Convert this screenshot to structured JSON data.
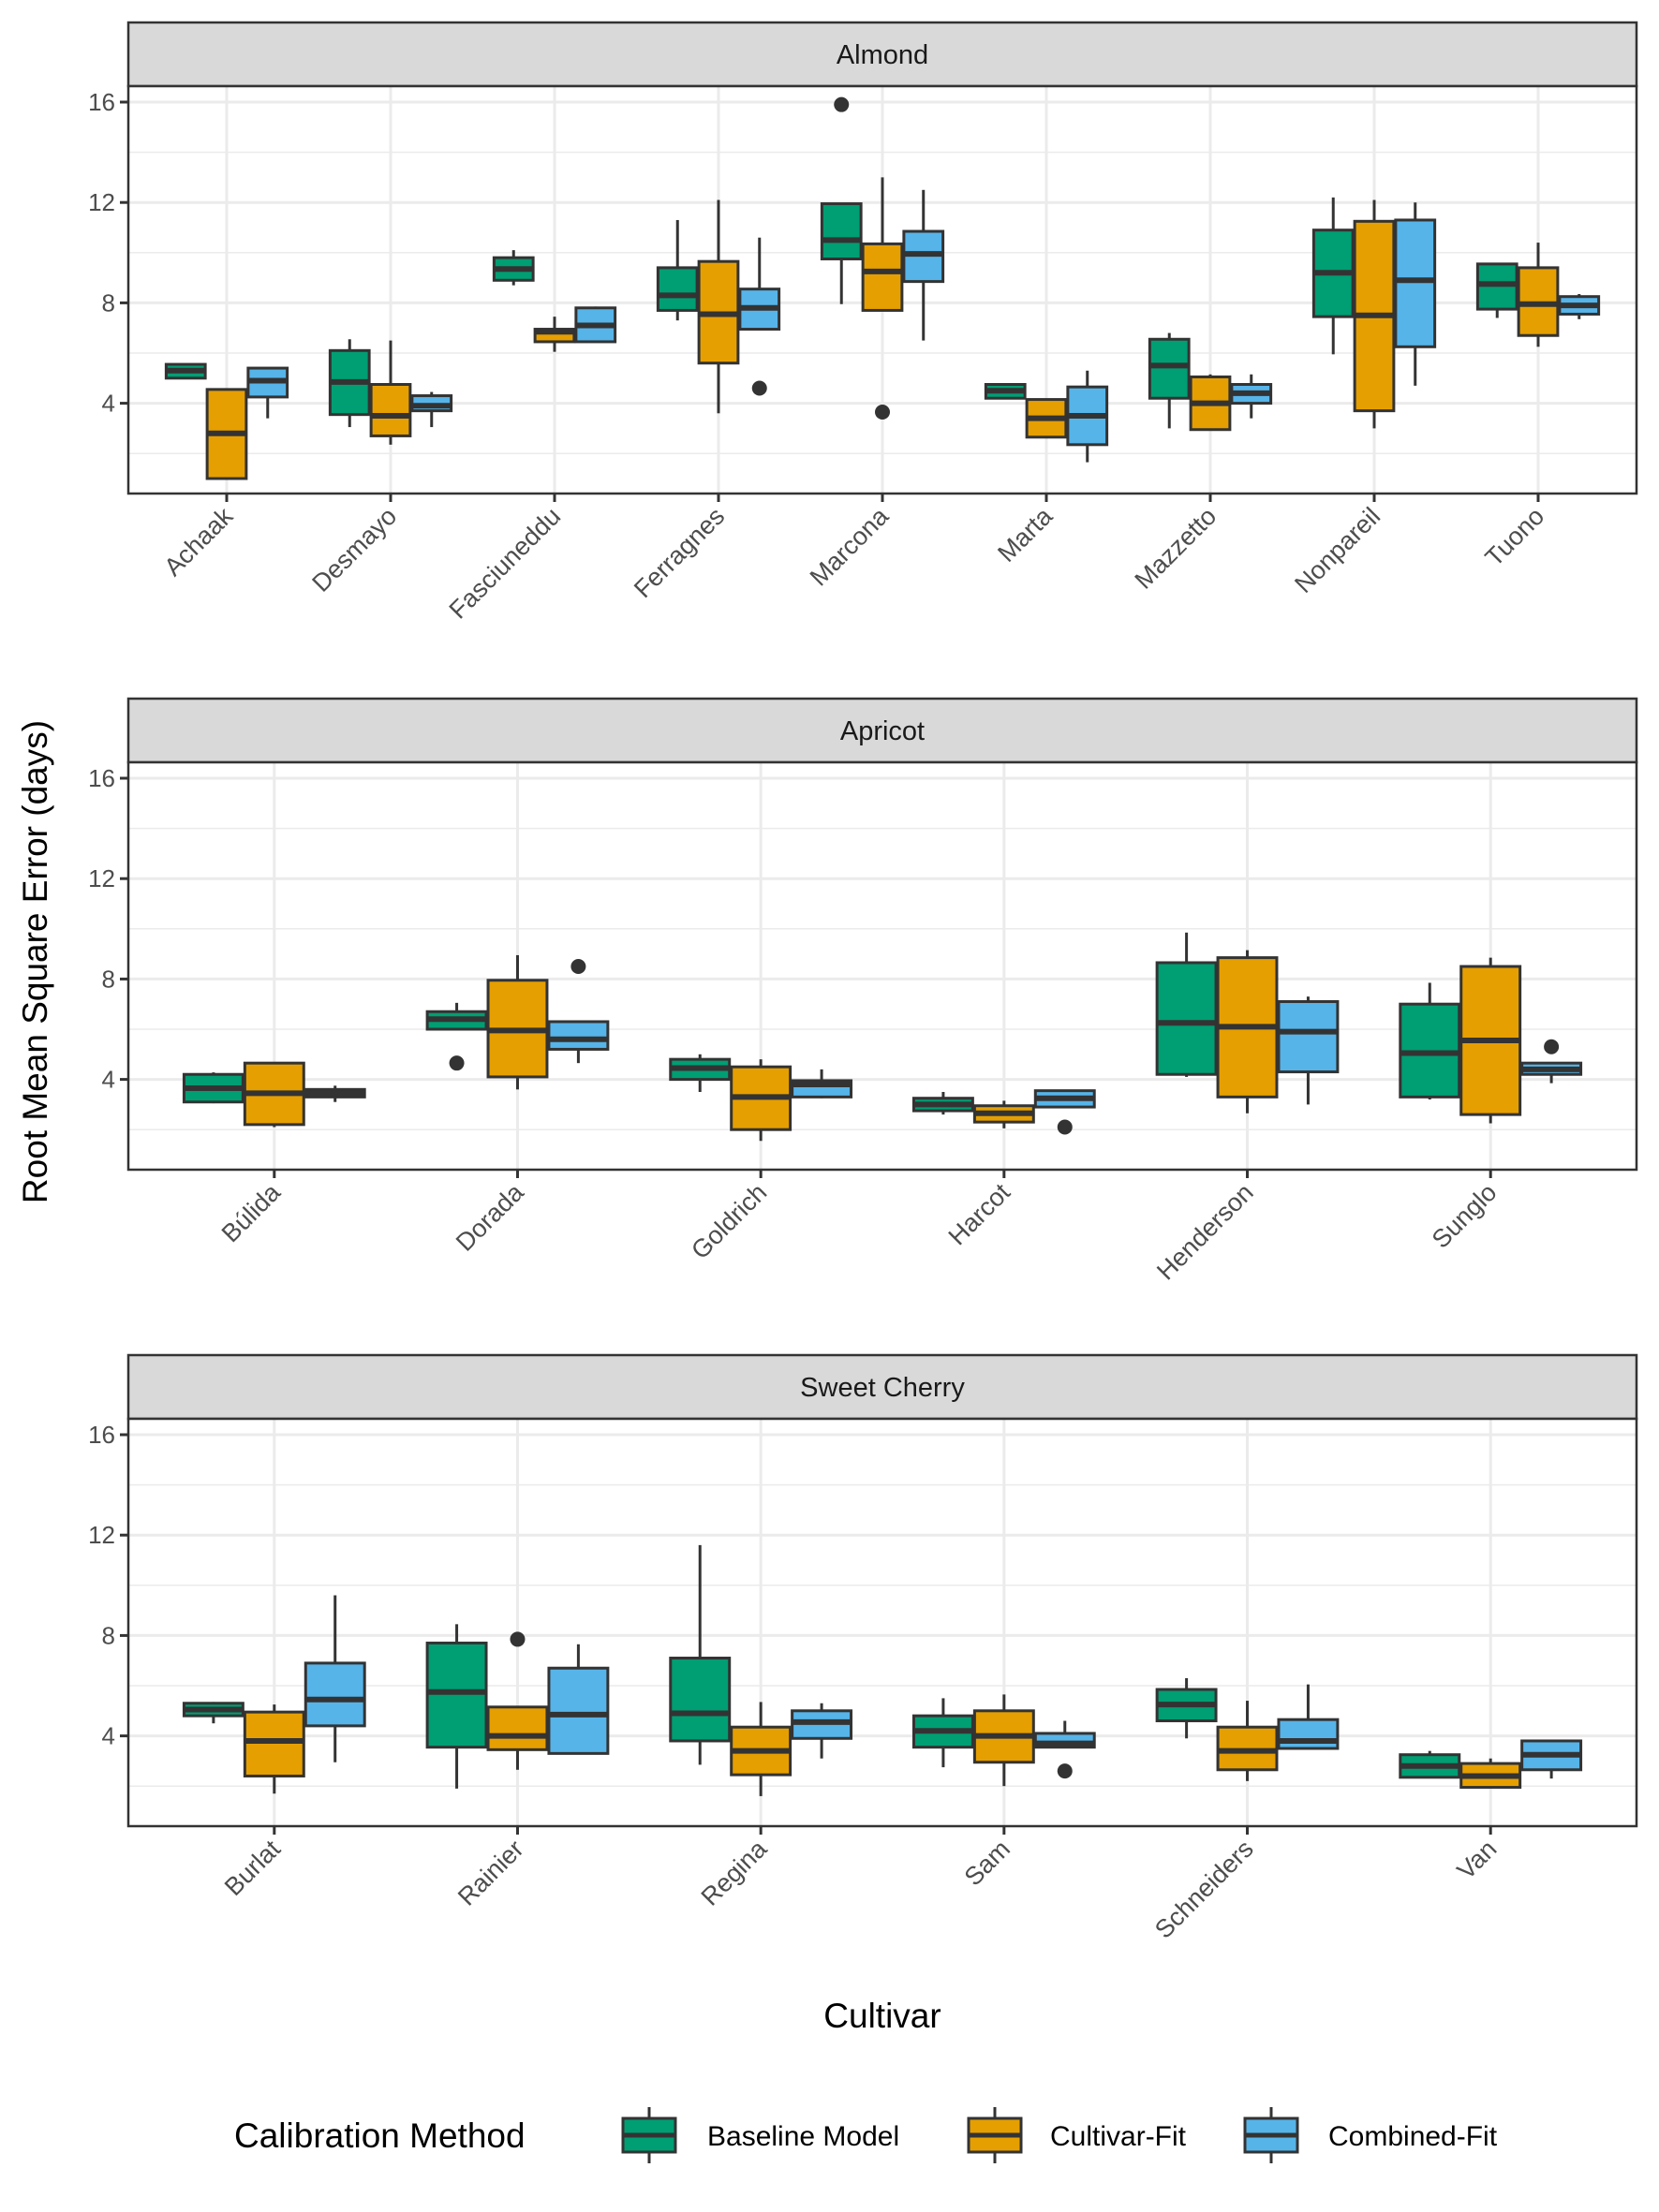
{
  "chart_data": {
    "type": "boxplot",
    "title": "",
    "xlabel": "Cultivar",
    "ylabel": "Root Mean Square Error (days)",
    "ylim": [
      0.38,
      17.0
    ],
    "yticks": [
      4,
      8,
      12,
      16
    ],
    "grid": true,
    "legend": {
      "title": "Calibration Method",
      "position": "bottom",
      "entries": [
        {
          "name": "Baseline Model",
          "color": "#009E73"
        },
        {
          "name": "Cultivar-Fit",
          "color": "#E69F00"
        },
        {
          "name": "Combined-Fit",
          "color": "#56B4E9"
        }
      ]
    },
    "panels": [
      {
        "strip": "Almond",
        "categories": [
          "Achaak",
          "Desmayo",
          "Fasciuneddu",
          "Ferragnes",
          "Marcona",
          "Marta",
          "Mazzetto",
          "Nonpareil",
          "Tuono"
        ],
        "series": [
          {
            "name": "Baseline Model",
            "boxes": [
              {
                "min": 5.0,
                "q1": 5.0,
                "median": 5.3,
                "q3": 5.55,
                "max": 5.55,
                "outliers": []
              },
              {
                "min": 3.05,
                "q1": 3.55,
                "median": 4.85,
                "q3": 6.1,
                "max": 6.55,
                "outliers": []
              },
              {
                "min": 8.7,
                "q1": 8.9,
                "median": 9.35,
                "q3": 9.8,
                "max": 10.1,
                "outliers": []
              },
              {
                "min": 7.3,
                "q1": 7.7,
                "median": 8.3,
                "q3": 9.4,
                "max": 11.3,
                "outliers": []
              },
              {
                "min": 7.95,
                "q1": 9.75,
                "median": 10.5,
                "q3": 11.95,
                "max": 11.95,
                "outliers": [
                  15.9
                ]
              },
              {
                "min": 4.2,
                "q1": 4.2,
                "median": 4.5,
                "q3": 4.75,
                "max": 4.75,
                "outliers": []
              },
              {
                "min": 3.0,
                "q1": 4.2,
                "median": 5.5,
                "q3": 6.55,
                "max": 6.8,
                "outliers": []
              },
              {
                "min": 5.95,
                "q1": 7.45,
                "median": 9.2,
                "q3": 10.9,
                "max": 12.2,
                "outliers": []
              },
              {
                "min": 7.4,
                "q1": 7.75,
                "median": 8.75,
                "q3": 9.55,
                "max": 9.55,
                "outliers": []
              }
            ]
          },
          {
            "name": "Cultivar-Fit",
            "boxes": [
              {
                "min": 1.0,
                "q1": 1.0,
                "median": 2.8,
                "q3": 4.55,
                "max": 4.55,
                "outliers": []
              },
              {
                "min": 2.35,
                "q1": 2.7,
                "median": 3.5,
                "q3": 4.75,
                "max": 6.5,
                "outliers": []
              },
              {
                "min": 6.05,
                "q1": 6.45,
                "median": 6.85,
                "q3": 6.95,
                "max": 7.45,
                "outliers": []
              },
              {
                "min": 3.6,
                "q1": 5.6,
                "median": 7.55,
                "q3": 9.65,
                "max": 12.1,
                "outliers": []
              },
              {
                "min": 7.7,
                "q1": 7.7,
                "median": 9.25,
                "q3": 10.35,
                "max": 13.0,
                "outliers": [
                  3.65
                ]
              },
              {
                "min": 2.65,
                "q1": 2.65,
                "median": 3.4,
                "q3": 4.15,
                "max": 4.15,
                "outliers": []
              },
              {
                "min": 2.95,
                "q1": 2.95,
                "median": 4.0,
                "q3": 5.05,
                "max": 5.15,
                "outliers": []
              },
              {
                "min": 3.0,
                "q1": 3.7,
                "median": 7.5,
                "q3": 11.25,
                "max": 12.1,
                "outliers": []
              },
              {
                "min": 6.25,
                "q1": 6.7,
                "median": 7.95,
                "q3": 9.4,
                "max": 10.4,
                "outliers": []
              }
            ]
          },
          {
            "name": "Combined-Fit",
            "boxes": [
              {
                "min": 3.4,
                "q1": 4.25,
                "median": 4.9,
                "q3": 5.4,
                "max": 5.4,
                "outliers": []
              },
              {
                "min": 3.05,
                "q1": 3.7,
                "median": 3.9,
                "q3": 4.3,
                "max": 4.45,
                "outliers": []
              },
              {
                "min": 6.45,
                "q1": 6.45,
                "median": 7.1,
                "q3": 7.8,
                "max": 7.85,
                "outliers": []
              },
              {
                "min": 6.95,
                "q1": 6.95,
                "median": 7.8,
                "q3": 8.55,
                "max": 10.6,
                "outliers": [
                  4.6
                ]
              },
              {
                "min": 6.5,
                "q1": 8.85,
                "median": 9.95,
                "q3": 10.85,
                "max": 12.5,
                "outliers": []
              },
              {
                "min": 1.65,
                "q1": 2.35,
                "median": 3.5,
                "q3": 4.65,
                "max": 5.3,
                "outliers": []
              },
              {
                "min": 3.4,
                "q1": 4.0,
                "median": 4.4,
                "q3": 4.75,
                "max": 5.15,
                "outliers": []
              },
              {
                "min": 4.7,
                "q1": 6.25,
                "median": 8.9,
                "q3": 11.3,
                "max": 12.0,
                "outliers": []
              },
              {
                "min": 7.35,
                "q1": 7.55,
                "median": 7.9,
                "q3": 8.25,
                "max": 8.35,
                "outliers": []
              }
            ]
          }
        ]
      },
      {
        "strip": "Apricot",
        "categories": [
          "Búlida",
          "Dorada",
          "Goldrich",
          "Harcot",
          "Henderson",
          "Sunglo"
        ],
        "series": [
          {
            "name": "Baseline Model",
            "boxes": [
              {
                "min": 3.05,
                "q1": 3.1,
                "median": 3.65,
                "q3": 4.2,
                "max": 4.28,
                "outliers": []
              },
              {
                "min": 6.0,
                "q1": 6.0,
                "median": 6.4,
                "q3": 6.7,
                "max": 7.05,
                "outliers": [
                  4.65
                ]
              },
              {
                "min": 3.5,
                "q1": 4.0,
                "median": 4.45,
                "q3": 4.8,
                "max": 5.0,
                "outliers": []
              },
              {
                "min": 2.6,
                "q1": 2.75,
                "median": 3.0,
                "q3": 3.25,
                "max": 3.5,
                "outliers": []
              },
              {
                "min": 4.1,
                "q1": 4.2,
                "median": 6.25,
                "q3": 8.65,
                "max": 9.85,
                "outliers": []
              },
              {
                "min": 3.2,
                "q1": 3.3,
                "median": 5.05,
                "q3": 7.0,
                "max": 7.85,
                "outliers": []
              }
            ]
          },
          {
            "name": "Cultivar-Fit",
            "boxes": [
              {
                "min": 2.1,
                "q1": 2.2,
                "median": 3.45,
                "q3": 4.65,
                "max": 4.65,
                "outliers": []
              },
              {
                "min": 3.6,
                "q1": 4.1,
                "median": 5.95,
                "q3": 7.95,
                "max": 8.95,
                "outliers": []
              },
              {
                "min": 1.55,
                "q1": 2.0,
                "median": 3.3,
                "q3": 4.5,
                "max": 4.8,
                "outliers": []
              },
              {
                "min": 2.05,
                "q1": 2.3,
                "median": 2.65,
                "q3": 2.95,
                "max": 3.15,
                "outliers": []
              },
              {
                "min": 2.65,
                "q1": 3.3,
                "median": 6.1,
                "q3": 8.85,
                "max": 9.15,
                "outliers": []
              },
              {
                "min": 2.25,
                "q1": 2.6,
                "median": 5.55,
                "q3": 8.5,
                "max": 8.85,
                "outliers": []
              }
            ]
          },
          {
            "name": "Combined-Fit",
            "boxes": [
              {
                "min": 3.1,
                "q1": 3.3,
                "median": 3.45,
                "q3": 3.6,
                "max": 3.75,
                "outliers": []
              },
              {
                "min": 4.65,
                "q1": 5.2,
                "median": 5.6,
                "q3": 6.3,
                "max": 6.3,
                "outliers": [
                  8.5
                ]
              },
              {
                "min": 3.25,
                "q1": 3.3,
                "median": 3.8,
                "q3": 3.95,
                "max": 4.4,
                "outliers": []
              },
              {
                "min": 2.9,
                "q1": 2.9,
                "median": 3.25,
                "q3": 3.55,
                "max": 3.55,
                "outliers": [
                  2.1
                ]
              },
              {
                "min": 3.0,
                "q1": 4.3,
                "median": 5.9,
                "q3": 7.1,
                "max": 7.3,
                "outliers": []
              },
              {
                "min": 3.85,
                "q1": 4.2,
                "median": 4.4,
                "q3": 4.65,
                "max": 4.65,
                "outliers": [
                  5.3
                ]
              }
            ]
          }
        ]
      },
      {
        "strip": "Sweet Cherry",
        "categories": [
          "Burlat",
          "Rainier",
          "Regina",
          "Sam",
          "Schneiders",
          "Van"
        ],
        "series": [
          {
            "name": "Baseline Model",
            "boxes": [
              {
                "min": 4.5,
                "q1": 4.8,
                "median": 5.05,
                "q3": 5.3,
                "max": 5.35,
                "outliers": []
              },
              {
                "min": 1.9,
                "q1": 3.55,
                "median": 5.75,
                "q3": 7.7,
                "max": 8.45,
                "outliers": []
              },
              {
                "min": 2.85,
                "q1": 3.8,
                "median": 4.9,
                "q3": 7.1,
                "max": 11.6,
                "outliers": []
              },
              {
                "min": 2.75,
                "q1": 3.55,
                "median": 4.2,
                "q3": 4.8,
                "max": 5.5,
                "outliers": []
              },
              {
                "min": 3.9,
                "q1": 4.6,
                "median": 5.25,
                "q3": 5.85,
                "max": 6.3,
                "outliers": []
              },
              {
                "min": 2.35,
                "q1": 2.35,
                "median": 2.8,
                "q3": 3.25,
                "max": 3.4,
                "outliers": []
              }
            ]
          },
          {
            "name": "Cultivar-Fit",
            "boxes": [
              {
                "min": 1.7,
                "q1": 2.4,
                "median": 3.8,
                "q3": 4.95,
                "max": 5.25,
                "outliers": []
              },
              {
                "min": 2.65,
                "q1": 3.45,
                "median": 4.0,
                "q3": 5.15,
                "max": 5.15,
                "outliers": [
                  7.85
                ]
              },
              {
                "min": 1.6,
                "q1": 2.45,
                "median": 3.4,
                "q3": 4.35,
                "max": 5.35,
                "outliers": []
              },
              {
                "min": 2.0,
                "q1": 2.95,
                "median": 4.0,
                "q3": 5.0,
                "max": 5.65,
                "outliers": []
              },
              {
                "min": 2.2,
                "q1": 2.65,
                "median": 3.4,
                "q3": 4.35,
                "max": 5.4,
                "outliers": []
              },
              {
                "min": 1.95,
                "q1": 1.95,
                "median": 2.4,
                "q3": 2.9,
                "max": 3.1,
                "outliers": []
              }
            ]
          },
          {
            "name": "Combined-Fit",
            "boxes": [
              {
                "min": 2.95,
                "q1": 4.4,
                "median": 5.45,
                "q3": 6.9,
                "max": 9.6,
                "outliers": []
              },
              {
                "min": 3.3,
                "q1": 3.3,
                "median": 4.85,
                "q3": 6.7,
                "max": 7.65,
                "outliers": []
              },
              {
                "min": 3.1,
                "q1": 3.9,
                "median": 4.55,
                "q3": 5.0,
                "max": 5.3,
                "outliers": []
              },
              {
                "min": 3.55,
                "q1": 3.55,
                "median": 3.7,
                "q3": 4.1,
                "max": 4.6,
                "outliers": [
                  2.6
                ]
              },
              {
                "min": 3.5,
                "q1": 3.5,
                "median": 3.8,
                "q3": 4.65,
                "max": 6.05,
                "outliers": []
              },
              {
                "min": 2.3,
                "q1": 2.65,
                "median": 3.25,
                "q3": 3.8,
                "max": 3.8,
                "outliers": []
              }
            ]
          }
        ]
      }
    ]
  }
}
